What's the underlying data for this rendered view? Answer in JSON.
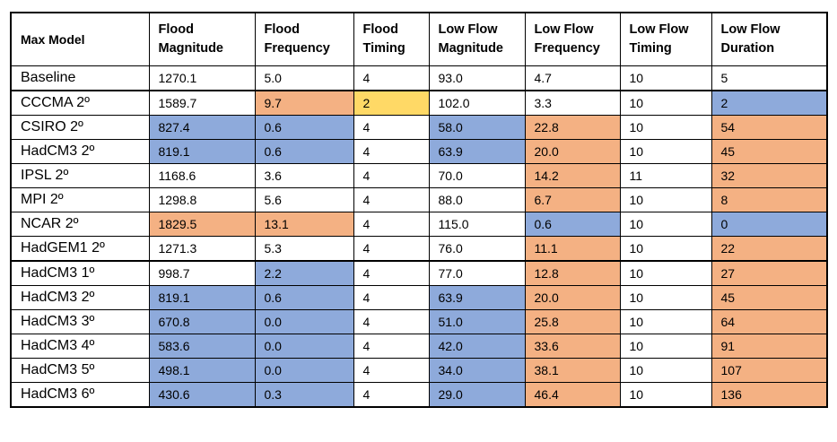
{
  "table": {
    "headers": [
      "Max Model",
      "Flood Magnitude",
      "Flood Frequency",
      "Flood Timing",
      "Low Flow Magnitude",
      "Low Flow Frequency",
      "Low Flow Timing",
      "Low Flow Duration"
    ],
    "colors": {
      "blue": "#8eaadb",
      "orange": "#f4b183",
      "yellow": "#ffd966",
      "white": "#ffffff"
    },
    "rows": [
      {
        "cells": [
          "Baseline",
          "1270.1",
          "5.0",
          "4",
          "93.0",
          "4.7",
          "10",
          "5"
        ],
        "fills": [
          "white",
          "white",
          "white",
          "white",
          "white",
          "white",
          "white",
          "white"
        ]
      },
      {
        "cells": [
          "CCCMA 2º",
          "1589.7",
          "9.7",
          "2",
          "102.0",
          "3.3",
          "10",
          "2"
        ],
        "fills": [
          "white",
          "white",
          "orange",
          "yellow",
          "white",
          "white",
          "white",
          "blue"
        ]
      },
      {
        "cells": [
          "CSIRO 2º",
          "827.4",
          "0.6",
          "4",
          "58.0",
          "22.8",
          "10",
          "54"
        ],
        "fills": [
          "white",
          "blue",
          "blue",
          "white",
          "blue",
          "orange",
          "white",
          "orange"
        ]
      },
      {
        "cells": [
          "HadCM3 2º",
          "819.1",
          "0.6",
          "4",
          "63.9",
          "20.0",
          "10",
          "45"
        ],
        "fills": [
          "white",
          "blue",
          "blue",
          "white",
          "blue",
          "orange",
          "white",
          "orange"
        ]
      },
      {
        "cells": [
          "IPSL 2º",
          "1168.6",
          "3.6",
          "4",
          "70.0",
          "14.2",
          "11",
          "32"
        ],
        "fills": [
          "white",
          "white",
          "white",
          "white",
          "white",
          "orange",
          "white",
          "orange"
        ]
      },
      {
        "cells": [
          "MPI  2º",
          "1298.8",
          "5.6",
          "4",
          "88.0",
          "6.7",
          "10",
          "8"
        ],
        "fills": [
          "white",
          "white",
          "white",
          "white",
          "white",
          "orange",
          "white",
          "orange"
        ]
      },
      {
        "cells": [
          "NCAR 2º",
          "1829.5",
          "13.1",
          "4",
          "115.0",
          "0.6",
          "10",
          "0"
        ],
        "fills": [
          "white",
          "orange",
          "orange",
          "white",
          "white",
          "blue",
          "white",
          "blue"
        ]
      },
      {
        "cells": [
          "HadGEM1 2º",
          "1271.3",
          "5.3",
          "4",
          "76.0",
          "11.1",
          "10",
          "22"
        ],
        "fills": [
          "white",
          "white",
          "white",
          "white",
          "white",
          "orange",
          "white",
          "orange"
        ]
      },
      {
        "cells": [
          "HadCM3 1º",
          "998.7",
          "2.2",
          "4",
          "77.0",
          "12.8",
          "10",
          "27"
        ],
        "fills": [
          "white",
          "white",
          "blue",
          "white",
          "white",
          "orange",
          "white",
          "orange"
        ]
      },
      {
        "cells": [
          "HadCM3 2º",
          "819.1",
          "0.6",
          "4",
          "63.9",
          "20.0",
          "10",
          "45"
        ],
        "fills": [
          "white",
          "blue",
          "blue",
          "white",
          "blue",
          "orange",
          "white",
          "orange"
        ]
      },
      {
        "cells": [
          "HadCM3 3º",
          "670.8",
          "0.0",
          "4",
          "51.0",
          "25.8",
          "10",
          "64"
        ],
        "fills": [
          "white",
          "blue",
          "blue",
          "white",
          "blue",
          "orange",
          "white",
          "orange"
        ]
      },
      {
        "cells": [
          "HadCM3 4º",
          "583.6",
          "0.0",
          "4",
          "42.0",
          "33.6",
          "10",
          "91"
        ],
        "fills": [
          "white",
          "blue",
          "blue",
          "white",
          "blue",
          "orange",
          "white",
          "orange"
        ]
      },
      {
        "cells": [
          "HadCM3 5º",
          "498.1",
          "0.0",
          "4",
          "34.0",
          "38.1",
          "10",
          "107"
        ],
        "fills": [
          "white",
          "blue",
          "blue",
          "white",
          "blue",
          "orange",
          "white",
          "orange"
        ]
      },
      {
        "cells": [
          "HadCM3 6º",
          "430.6",
          "0.3",
          "4",
          "29.0",
          "46.4",
          "10",
          "136"
        ],
        "fills": [
          "white",
          "blue",
          "blue",
          "white",
          "blue",
          "orange",
          "white",
          "orange"
        ]
      }
    ]
  }
}
